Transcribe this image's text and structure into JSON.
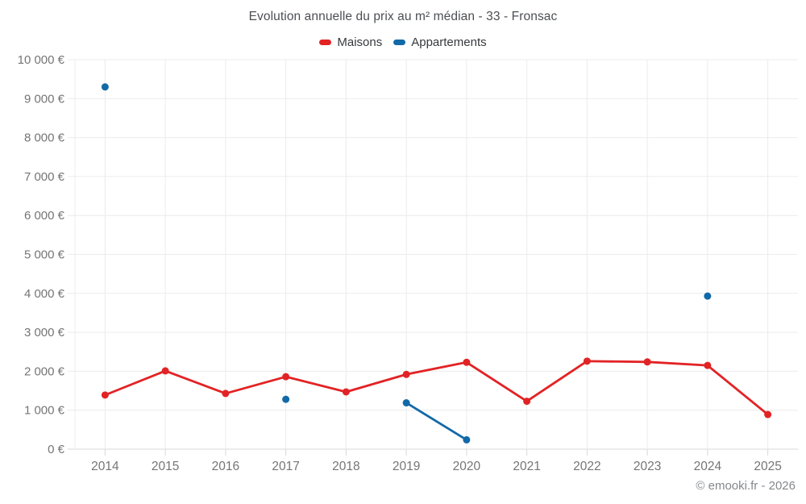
{
  "header": {
    "title": "Evolution annuelle du prix au m² médian - 33 - Fronsac"
  },
  "legend": {
    "items": [
      {
        "label": "Maisons",
        "color": "#e22325"
      },
      {
        "label": "Appartements",
        "color": "#1269a8"
      }
    ]
  },
  "footer": {
    "watermark": "© emooki.fr - 2026"
  },
  "styles": {
    "grid_color": "#ececec",
    "axis_color": "#d8d8d8",
    "tick_label_color": "#757575",
    "title_color": "#4c4f54",
    "background": "#ffffff"
  },
  "chart_data": {
    "type": "line",
    "title": "Evolution annuelle du prix au m² médian - 33 - Fronsac",
    "xlabel": "",
    "ylabel": "",
    "categories": [
      "2014",
      "2015",
      "2016",
      "2017",
      "2018",
      "2019",
      "2020",
      "2021",
      "2022",
      "2023",
      "2024",
      "2025"
    ],
    "series": [
      {
        "name": "Maisons",
        "color": "#e22325",
        "values": [
          1390,
          2010,
          1430,
          1860,
          1470,
          1920,
          2230,
          1230,
          2260,
          2240,
          2150,
          890
        ]
      },
      {
        "name": "Appartements",
        "color": "#1269a8",
        "values": [
          9300,
          null,
          null,
          1280,
          null,
          1190,
          240,
          null,
          null,
          null,
          3930,
          null
        ]
      }
    ],
    "ylim": [
      0,
      10000
    ],
    "y_ticks": [
      0,
      1000,
      2000,
      3000,
      4000,
      5000,
      6000,
      7000,
      8000,
      9000,
      10000
    ],
    "y_tick_labels": [
      "0 €",
      "1 000 €",
      "2 000 €",
      "3 000 €",
      "4 000 €",
      "5 000 €",
      "6 000 €",
      "7 000 €",
      "8 000 €",
      "9 000 €",
      "10 000 €"
    ],
    "grid": true,
    "legend_position": "top",
    "marker_radius": 4.5,
    "line_width": 2.8
  }
}
